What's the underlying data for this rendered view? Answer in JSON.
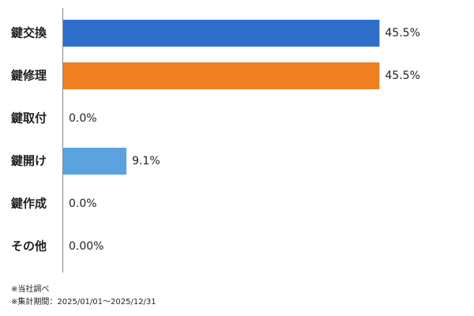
{
  "chart_data": {
    "type": "hbar",
    "categories": [
      "鍵交換",
      "鍵修理",
      "鍵取付",
      "鍵開け",
      "鍵作成",
      "その他"
    ],
    "values": [
      45.5,
      45.5,
      0.0,
      9.1,
      0.0,
      0.0
    ],
    "value_labels": [
      "45.5%",
      "45.5%",
      "0.0%",
      "9.1%",
      "0.0%",
      "0.00%"
    ],
    "colors": [
      "#2e6fcc",
      "#f07f22",
      "#2e6fcc",
      "#5ba3e0",
      "#2e6fcc",
      "#2e6fcc"
    ],
    "xlim": [
      0,
      50
    ],
    "notes": [
      "※当社調べ",
      "※集計期間：2025/01/01～2025/12/31"
    ]
  }
}
